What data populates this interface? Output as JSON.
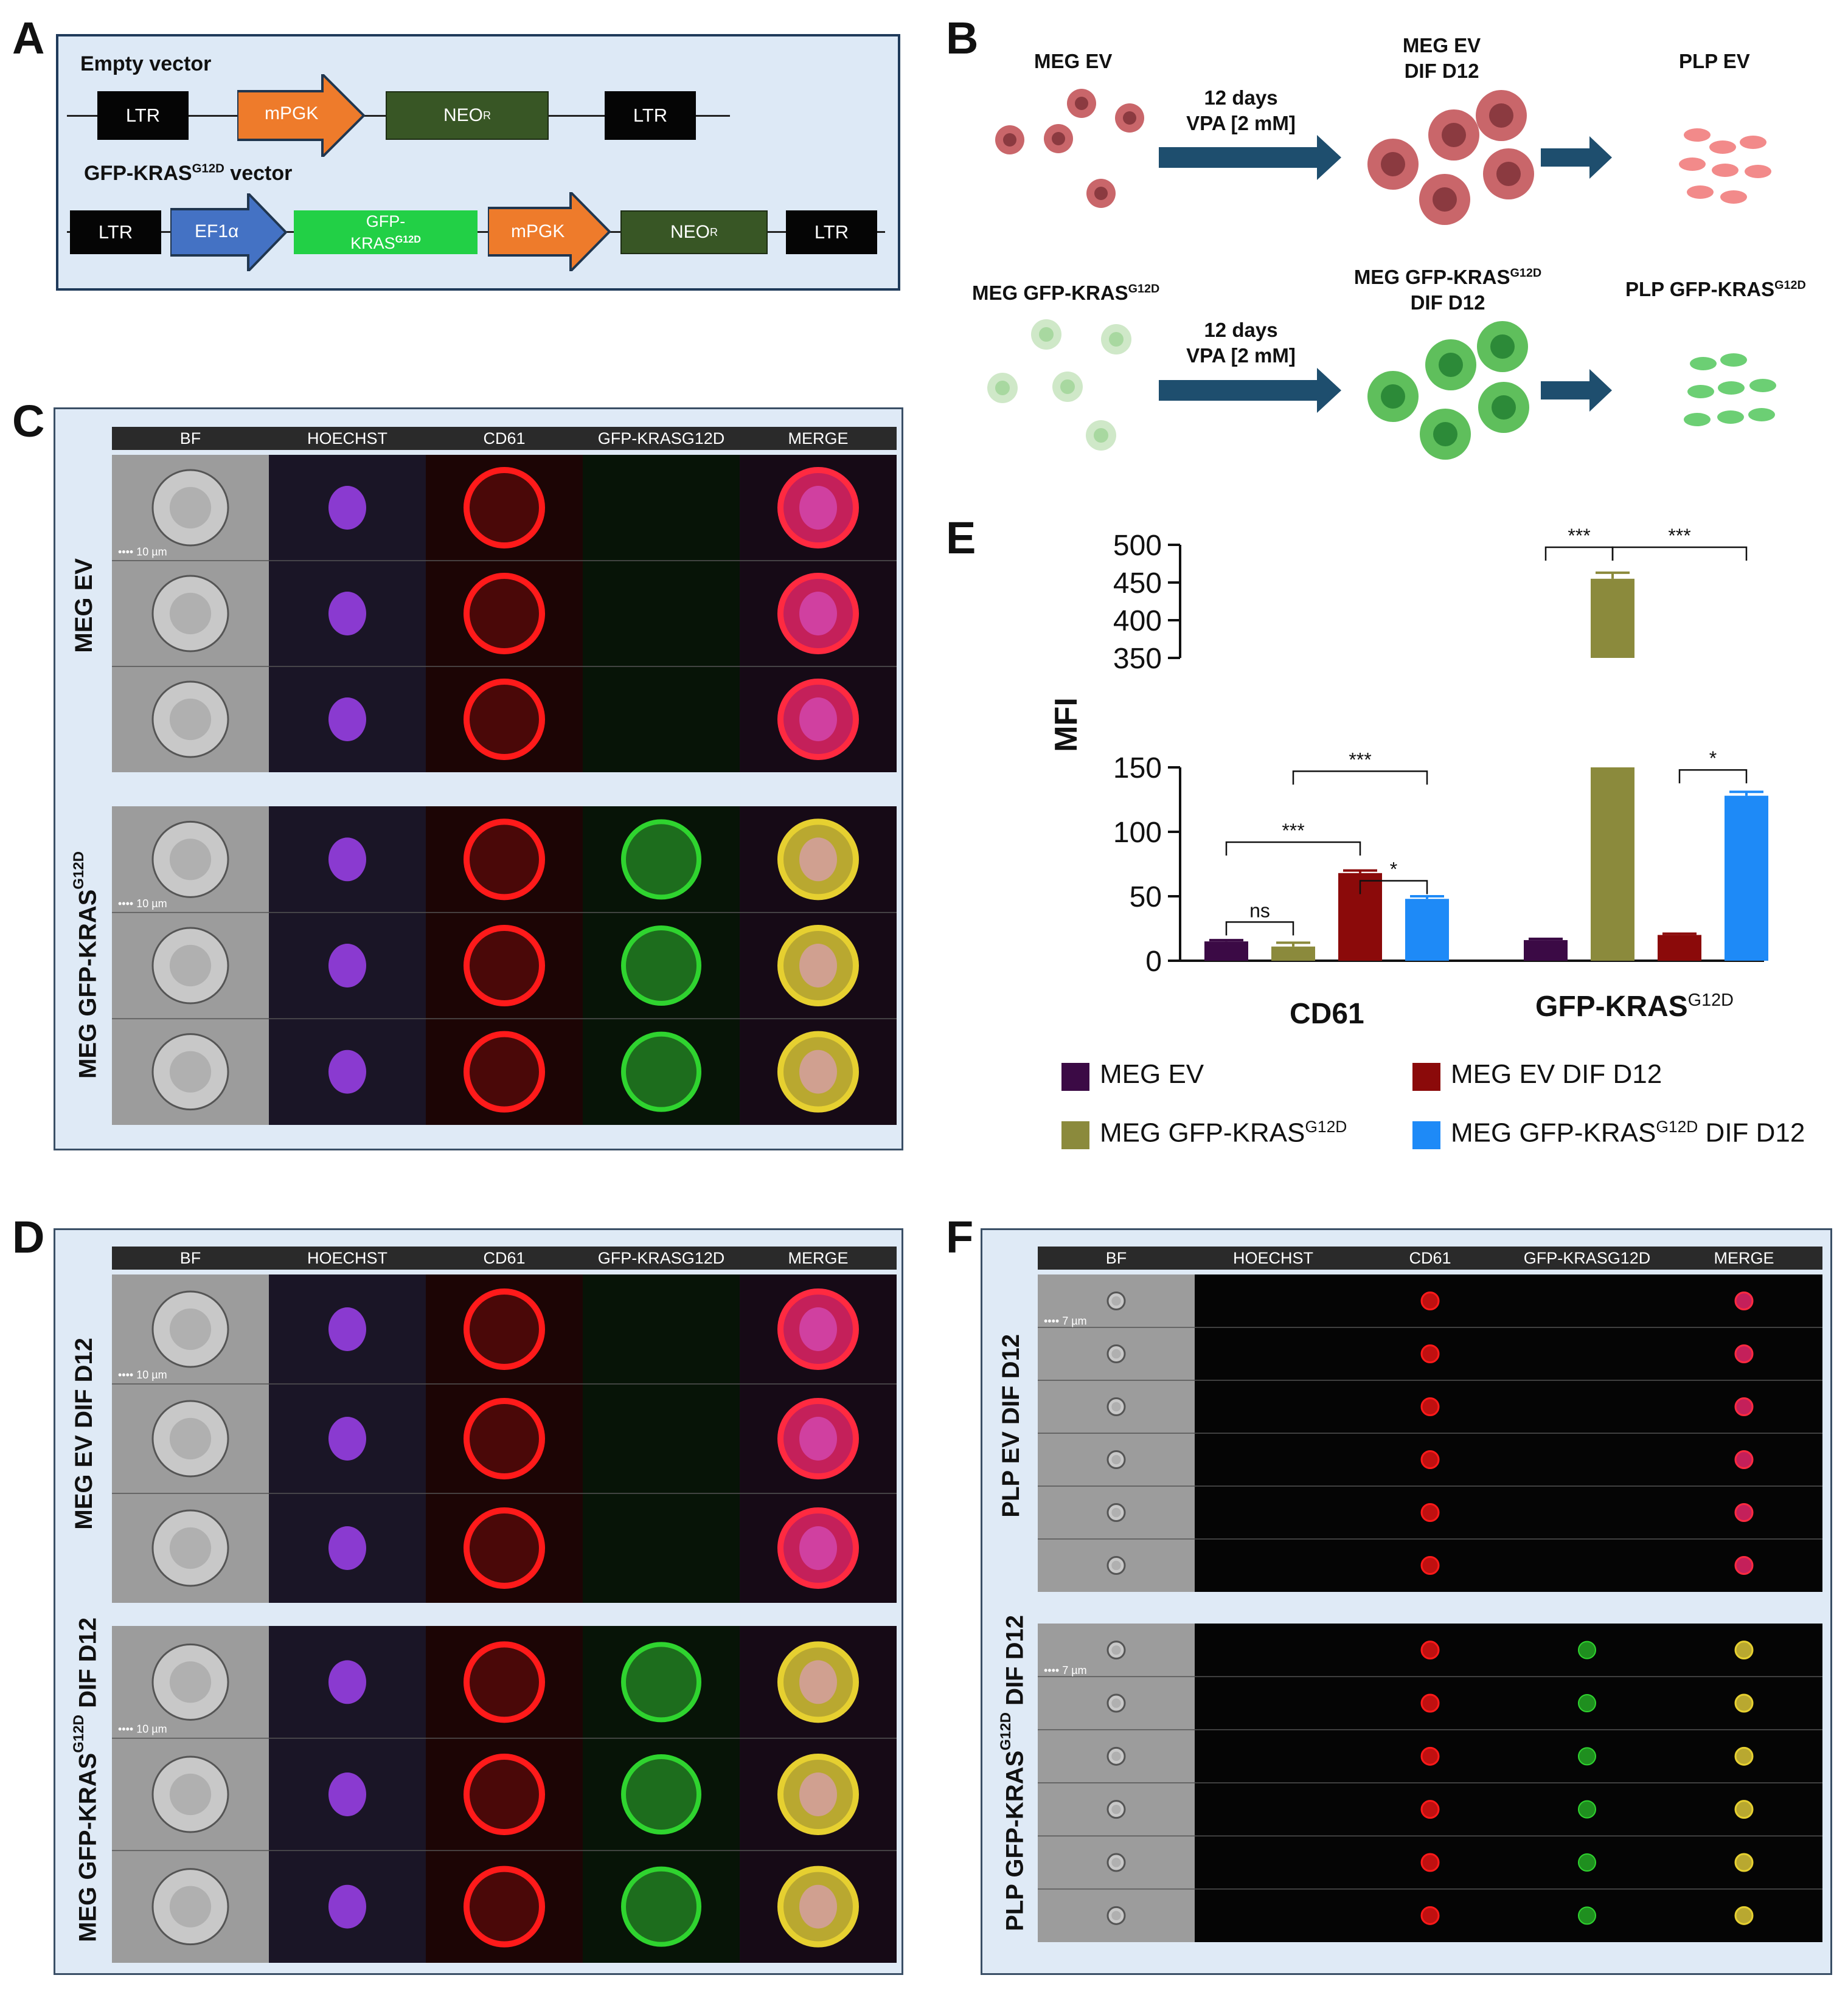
{
  "panel_letters": {
    "a": "A",
    "b": "B",
    "c": "C",
    "d": "D",
    "e": "E",
    "f": "F"
  },
  "panelA": {
    "empty_title": "Empty vector",
    "gfp_title_pre": "GFP-KRAS",
    "gfp_title_sup": "G12D",
    "gfp_title_post": " vector",
    "ltr": "LTR",
    "mpgk": "mPGK",
    "neo": "NEO",
    "neo_sup": "R",
    "ef1a": "EF1α",
    "gfp_l1": "GFP-",
    "gfp_l2": "KRAS",
    "gfp_l2_sup": "G12D"
  },
  "panelB": {
    "meg_ev": "MEG EV",
    "arrow_l1": "12 days",
    "arrow_l2": "VPA [2 mM]",
    "meg_ev_dif_l1": "MEG EV",
    "meg_ev_dif_l2": "DIF D12",
    "plp_ev": "PLP  EV",
    "meg_gfp": "MEG GFP-KRAS",
    "meg_gfp_sup": "G12D",
    "meg_gfp_dif_l1": "MEG GFP-KRAS",
    "meg_gfp_dif_l1_sup": "G12D",
    "meg_gfp_dif_l2": "DIF D12",
    "plp_gfp": "PLP  GFP-KRAS",
    "plp_gfp_sup": "G12D",
    "colors": {
      "ev_cell": "#c9666a",
      "ev_dark": "#8b3a40",
      "gfp_cell": "#5fbf5c",
      "gfp_light": "#cfe8c8",
      "arrow": "#1e4e6e"
    }
  },
  "channels": [
    "BF",
    "HOECHST",
    "CD61",
    "GFP-KRASG12D",
    "MERGE"
  ],
  "panelC": {
    "row1": "MEG  EV",
    "row2_pre": "MEG GFP-KRAS",
    "row2_sup": "G12D",
    "scale": "10 µm"
  },
  "panelD": {
    "row1": "MEG EV  DIF D12",
    "row2_pre": "MEG GFP-KRAS",
    "row2_sup": "G12D",
    "row2_post": " DIF D12",
    "scale": "10 µm"
  },
  "panelF": {
    "row1": "PLP  EV  DIF D12",
    "row2_pre": "PLP GFP-KRAS",
    "row2_sup": "G12D",
    "row2_post": " DIF D12",
    "scale": "7 µm"
  },
  "chart_data": {
    "type": "bar",
    "ylabel": "MFI",
    "axis_break": [
      150,
      350
    ],
    "ylim": [
      0,
      500
    ],
    "yticks": [
      "500",
      "450",
      "400",
      "350",
      "150",
      "100",
      "50",
      "0"
    ],
    "categories": [
      "CD61",
      "GFP-KRAS"
    ],
    "category_sup": [
      "",
      "G12D"
    ],
    "series": [
      {
        "name": "MEG EV",
        "values": [
          15,
          16
        ],
        "errors": [
          1,
          1
        ],
        "color": "#3b0a45"
      },
      {
        "name": "MEG GFP-KRAS",
        "name_sup": "G12D",
        "values": [
          11,
          455
        ],
        "errors": [
          3,
          8
        ],
        "color": "#8b8a3c"
      },
      {
        "name": "MEG EV DIF D12",
        "values": [
          68,
          20
        ],
        "errors": [
          2,
          1
        ],
        "color": "#8b0a0a"
      },
      {
        "name": "MEG GFP-KRAS",
        "name_sup": "G12D",
        "name_post": " DIF D12",
        "values": [
          48,
          128
        ],
        "errors": [
          2,
          3
        ],
        "color": "#1e8af7"
      }
    ],
    "significance": [
      "ns",
      "***",
      "***",
      "*",
      "***",
      "***",
      "*"
    ]
  }
}
